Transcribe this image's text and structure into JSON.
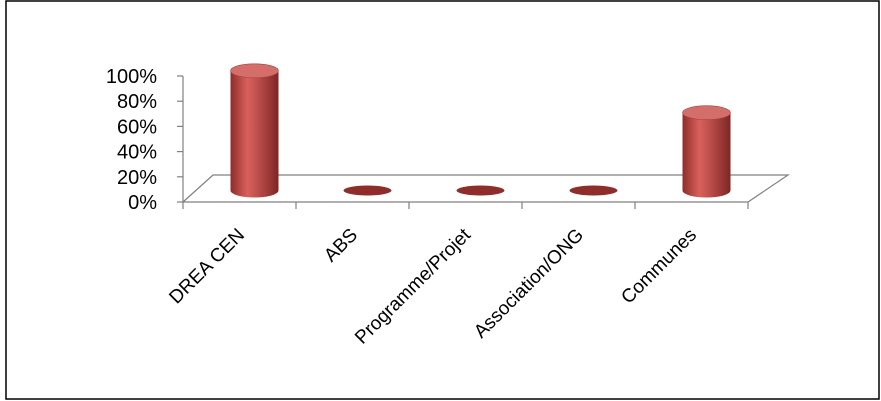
{
  "chart_data": {
    "type": "bar",
    "style": "3d-cylinder",
    "categories": [
      "DREA CEN",
      "ABS",
      "Programme/Projet",
      "Association/ONG",
      "Communes"
    ],
    "values": [
      100,
      0,
      0,
      0,
      65
    ],
    "y_ticks": [
      "0%",
      "20%",
      "40%",
      "60%",
      "80%",
      "100%"
    ],
    "ylim": [
      0,
      100
    ],
    "grid": false,
    "colors": {
      "bar_body": "#c0504d",
      "bar_top": "#d36e6b",
      "bar_dark": "#8e2d2a",
      "axis": "#808080",
      "frame": "#000000"
    }
  }
}
